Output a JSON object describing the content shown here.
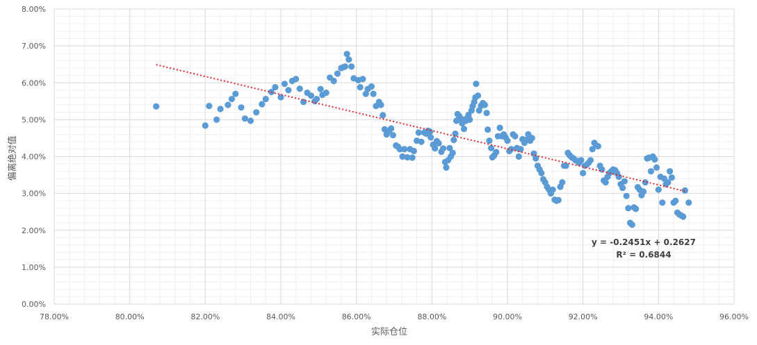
{
  "chart_data": {
    "type": "scatter",
    "title": "",
    "xlabel": "实际仓位",
    "ylabel": "偏离绝对值",
    "xlim": [
      0.78,
      0.96
    ],
    "ylim": [
      0.0,
      0.08
    ],
    "x_ticks": [
      "78.00%",
      "80.00%",
      "82.00%",
      "84.00%",
      "86.00%",
      "88.00%",
      "90.00%",
      "92.00%",
      "94.00%",
      "96.00%"
    ],
    "y_ticks": [
      "0.00%",
      "1.00%",
      "2.00%",
      "3.00%",
      "4.00%",
      "5.00%",
      "6.00%",
      "7.00%",
      "8.00%"
    ],
    "grid": true,
    "marker_color": "#5B9BD5",
    "trendline": {
      "slope": -0.2451,
      "intercept": 0.2627,
      "x_range": [
        0.807,
        0.947
      ],
      "color": "#E0262B",
      "style": "dotted",
      "equation": "y = -0.2451x + 0.2627",
      "r_squared": "R² = 0.6844"
    },
    "points": [
      [
        0.807,
        0.0536
      ],
      [
        0.82,
        0.0484
      ],
      [
        0.821,
        0.0537
      ],
      [
        0.823,
        0.05
      ],
      [
        0.824,
        0.0529
      ],
      [
        0.826,
        0.054
      ],
      [
        0.827,
        0.0556
      ],
      [
        0.828,
        0.057
      ],
      [
        0.8295,
        0.0533
      ],
      [
        0.8305,
        0.0503
      ],
      [
        0.832,
        0.0497
      ],
      [
        0.8335,
        0.052
      ],
      [
        0.835,
        0.0542
      ],
      [
        0.836,
        0.0556
      ],
      [
        0.8375,
        0.0575
      ],
      [
        0.8385,
        0.0588
      ],
      [
        0.84,
        0.0561
      ],
      [
        0.841,
        0.0597
      ],
      [
        0.842,
        0.058
      ],
      [
        0.843,
        0.0605
      ],
      [
        0.844,
        0.061
      ],
      [
        0.845,
        0.0584
      ],
      [
        0.846,
        0.0548
      ],
      [
        0.847,
        0.0573
      ],
      [
        0.848,
        0.0565
      ],
      [
        0.849,
        0.055
      ],
      [
        0.8495,
        0.0556
      ],
      [
        0.8505,
        0.0583
      ],
      [
        0.851,
        0.0567
      ],
      [
        0.852,
        0.0573
      ],
      [
        0.853,
        0.0614
      ],
      [
        0.854,
        0.0605
      ],
      [
        0.855,
        0.0625
      ],
      [
        0.856,
        0.064
      ],
      [
        0.8565,
        0.0642
      ],
      [
        0.857,
        0.0644
      ],
      [
        0.8575,
        0.0678
      ],
      [
        0.858,
        0.0663
      ],
      [
        0.8587,
        0.0644
      ],
      [
        0.8593,
        0.0612
      ],
      [
        0.8605,
        0.0607
      ],
      [
        0.861,
        0.0588
      ],
      [
        0.8617,
        0.061
      ],
      [
        0.8625,
        0.057
      ],
      [
        0.863,
        0.0583
      ],
      [
        0.864,
        0.059
      ],
      [
        0.8645,
        0.057
      ],
      [
        0.8652,
        0.0537
      ],
      [
        0.866,
        0.0548
      ],
      [
        0.8665,
        0.054
      ],
      [
        0.867,
        0.0512
      ],
      [
        0.8675,
        0.0474
      ],
      [
        0.868,
        0.046
      ],
      [
        0.8687,
        0.047
      ],
      [
        0.8692,
        0.0476
      ],
      [
        0.8697,
        0.0458
      ],
      [
        0.8705,
        0.043
      ],
      [
        0.871,
        0.0427
      ],
      [
        0.8715,
        0.042
      ],
      [
        0.8722,
        0.04
      ],
      [
        0.8727,
        0.042
      ],
      [
        0.8735,
        0.0398
      ],
      [
        0.8742,
        0.042
      ],
      [
        0.8748,
        0.0397
      ],
      [
        0.8752,
        0.0415
      ],
      [
        0.876,
        0.0443
      ],
      [
        0.8765,
        0.0465
      ],
      [
        0.8772,
        0.044
      ],
      [
        0.878,
        0.0465
      ],
      [
        0.8785,
        0.0462
      ],
      [
        0.879,
        0.047
      ],
      [
        0.8795,
        0.0467
      ],
      [
        0.8797,
        0.0452
      ],
      [
        0.8803,
        0.0432
      ],
      [
        0.8808,
        0.0422
      ],
      [
        0.8813,
        0.0442
      ],
      [
        0.8818,
        0.0436
      ],
      [
        0.8825,
        0.0413
      ],
      [
        0.883,
        0.0422
      ],
      [
        0.8835,
        0.0385
      ],
      [
        0.8838,
        0.037
      ],
      [
        0.8843,
        0.039
      ],
      [
        0.8847,
        0.0423
      ],
      [
        0.885,
        0.04
      ],
      [
        0.8855,
        0.041
      ],
      [
        0.8858,
        0.0445
      ],
      [
        0.8862,
        0.0462
      ],
      [
        0.8865,
        0.0497
      ],
      [
        0.8868,
        0.0515
      ],
      [
        0.8872,
        0.051
      ],
      [
        0.8878,
        0.0502
      ],
      [
        0.888,
        0.049
      ],
      [
        0.8885,
        0.0475
      ],
      [
        0.889,
        0.0497
      ],
      [
        0.8892,
        0.0503
      ],
      [
        0.8897,
        0.0513
      ],
      [
        0.89,
        0.05
      ],
      [
        0.8905,
        0.0525
      ],
      [
        0.8908,
        0.0537
      ],
      [
        0.8912,
        0.0548
      ],
      [
        0.8915,
        0.056
      ],
      [
        0.8917,
        0.0597
      ],
      [
        0.8922,
        0.0565
      ],
      [
        0.8925,
        0.0525
      ],
      [
        0.893,
        0.0538
      ],
      [
        0.8935,
        0.0545
      ],
      [
        0.894,
        0.054
      ],
      [
        0.8945,
        0.0518
      ],
      [
        0.8948,
        0.0473
      ],
      [
        0.8952,
        0.0443
      ],
      [
        0.8957,
        0.0423
      ],
      [
        0.896,
        0.0398
      ],
      [
        0.8965,
        0.0403
      ],
      [
        0.897,
        0.0412
      ],
      [
        0.8975,
        0.0455
      ],
      [
        0.898,
        0.0478
      ],
      [
        0.8985,
        0.0455
      ],
      [
        0.899,
        0.046
      ],
      [
        0.8995,
        0.0452
      ],
      [
        0.9,
        0.0443
      ],
      [
        0.9005,
        0.0415
      ],
      [
        0.901,
        0.042
      ],
      [
        0.9015,
        0.046
      ],
      [
        0.902,
        0.0455
      ],
      [
        0.9025,
        0.0423
      ],
      [
        0.903,
        0.04
      ],
      [
        0.9035,
        0.042
      ],
      [
        0.904,
        0.0447
      ],
      [
        0.9045,
        0.0437
      ],
      [
        0.905,
        0.0445
      ],
      [
        0.9055,
        0.046
      ],
      [
        0.906,
        0.0443
      ],
      [
        0.9065,
        0.045
      ],
      [
        0.907,
        0.0408
      ],
      [
        0.9075,
        0.0395
      ],
      [
        0.908,
        0.0375
      ],
      [
        0.9085,
        0.0365
      ],
      [
        0.909,
        0.0355
      ],
      [
        0.9095,
        0.0338
      ],
      [
        0.91,
        0.033
      ],
      [
        0.9105,
        0.0318
      ],
      [
        0.911,
        0.031
      ],
      [
        0.9115,
        0.03
      ],
      [
        0.912,
        0.031
      ],
      [
        0.9125,
        0.0283
      ],
      [
        0.913,
        0.028
      ],
      [
        0.9135,
        0.0282
      ],
      [
        0.914,
        0.0318
      ],
      [
        0.9145,
        0.033
      ],
      [
        0.915,
        0.0375
      ],
      [
        0.9155,
        0.0375
      ],
      [
        0.916,
        0.041
      ],
      [
        0.9165,
        0.0403
      ],
      [
        0.917,
        0.0398
      ],
      [
        0.9175,
        0.0395
      ],
      [
        0.918,
        0.039
      ],
      [
        0.9185,
        0.0388
      ],
      [
        0.919,
        0.0383
      ],
      [
        0.9195,
        0.039
      ],
      [
        0.92,
        0.0355
      ],
      [
        0.9205,
        0.0375
      ],
      [
        0.921,
        0.0378
      ],
      [
        0.9215,
        0.0383
      ],
      [
        0.922,
        0.039
      ],
      [
        0.9225,
        0.042
      ],
      [
        0.923,
        0.0437
      ],
      [
        0.9235,
        0.043
      ],
      [
        0.924,
        0.0428
      ],
      [
        0.9245,
        0.0375
      ],
      [
        0.925,
        0.0365
      ],
      [
        0.9255,
        0.0335
      ],
      [
        0.926,
        0.033
      ],
      [
        0.9265,
        0.0345
      ],
      [
        0.927,
        0.0355
      ],
      [
        0.9275,
        0.036
      ],
      [
        0.928,
        0.0365
      ],
      [
        0.9285,
        0.0363
      ],
      [
        0.929,
        0.0355
      ],
      [
        0.9295,
        0.0345
      ],
      [
        0.93,
        0.0325
      ],
      [
        0.9305,
        0.0315
      ],
      [
        0.931,
        0.0333
      ],
      [
        0.9315,
        0.0293
      ],
      [
        0.932,
        0.026
      ],
      [
        0.9325,
        0.022
      ],
      [
        0.933,
        0.0215
      ],
      [
        0.9335,
        0.0262
      ],
      [
        0.934,
        0.0258
      ],
      [
        0.9345,
        0.0317
      ],
      [
        0.935,
        0.031
      ],
      [
        0.9355,
        0.0295
      ],
      [
        0.936,
        0.0305
      ],
      [
        0.9365,
        0.033
      ],
      [
        0.937,
        0.0395
      ],
      [
        0.9375,
        0.0397
      ],
      [
        0.938,
        0.036
      ],
      [
        0.9385,
        0.04
      ],
      [
        0.939,
        0.0392
      ],
      [
        0.9395,
        0.037
      ],
      [
        0.94,
        0.031
      ],
      [
        0.9405,
        0.0345
      ],
      [
        0.941,
        0.0275
      ],
      [
        0.9415,
        0.034
      ],
      [
        0.942,
        0.0325
      ],
      [
        0.9425,
        0.033
      ],
      [
        0.943,
        0.036
      ],
      [
        0.9435,
        0.0343
      ],
      [
        0.944,
        0.0275
      ],
      [
        0.9445,
        0.028
      ],
      [
        0.945,
        0.0248
      ],
      [
        0.9455,
        0.0243
      ],
      [
        0.946,
        0.024
      ],
      [
        0.9465,
        0.0237
      ],
      [
        0.947,
        0.0308
      ],
      [
        0.948,
        0.0275
      ]
    ]
  }
}
